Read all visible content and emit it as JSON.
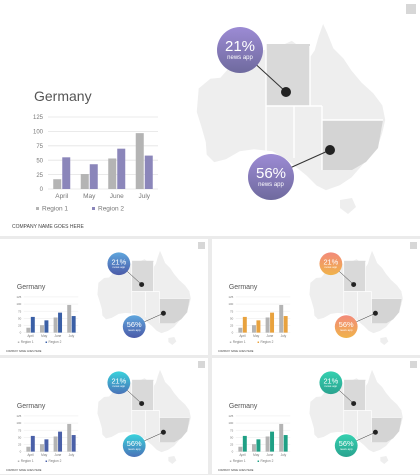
{
  "slides": [
    {
      "title": "Germany",
      "footer": "COMPANY NAME GOES HERE",
      "theme": {
        "bubble_top": "#9c8bd4",
        "bubble_bottom": "#6f6a9e",
        "bar_a": "#a39cc6",
        "bar_b": "#8b86ba"
      },
      "bubbles": [
        {
          "pct": "21%",
          "label": "news app"
        },
        {
          "pct": "56%",
          "label": "news app"
        }
      ]
    },
    {
      "title": "Germany",
      "footer": "COMPANY NAME GOES HERE",
      "theme": {
        "bubble_top": "#5fa6dd",
        "bubble_bottom": "#4b5aa8",
        "bar_a": "#3aa0bf",
        "bar_b": "#3a5fa6"
      },
      "bubbles": [
        {
          "pct": "21%",
          "label": "news app"
        },
        {
          "pct": "56%",
          "label": "news app"
        }
      ]
    },
    {
      "title": "Germany",
      "footer": "COMPANY NAME GOES HERE",
      "theme": {
        "bubble_top": "#f28a7a",
        "bubble_bottom": "#f0b34a",
        "bar_a": "#f0b461",
        "bar_b": "#e8a23e"
      },
      "bubbles": [
        {
          "pct": "21%",
          "label": "news app"
        },
        {
          "pct": "56%",
          "label": "news app"
        }
      ]
    },
    {
      "title": "Germany",
      "footer": "COMPANY NAME GOES HERE",
      "theme": {
        "bubble_top": "#39d2dc",
        "bubble_bottom": "#4a72b8",
        "bar_a": "#4d8fbf",
        "bar_b": "#4a60a8"
      },
      "bubbles": [
        {
          "pct": "21%",
          "label": "news app"
        },
        {
          "pct": "56%",
          "label": "news app"
        }
      ]
    },
    {
      "title": "Germany",
      "footer": "COMPANY NAME GOES HERE",
      "theme": {
        "bubble_top": "#35d0b0",
        "bubble_bottom": "#2aa38f",
        "bar_a": "#2cb89a",
        "bar_b": "#1fa085"
      },
      "bubbles": [
        {
          "pct": "21%",
          "label": "news app"
        },
        {
          "pct": "56%",
          "label": "news app"
        }
      ]
    }
  ],
  "chart_data": {
    "type": "bar",
    "categories": [
      "April",
      "May",
      "June",
      "July"
    ],
    "series": [
      {
        "name": "Region 1",
        "values": [
          17,
          26,
          53,
          97
        ]
      },
      {
        "name": "Region 2",
        "values": [
          55,
          43,
          70,
          58
        ]
      }
    ],
    "series_colors": [
      "#b4b4b4"
    ],
    "ylim": [
      0,
      125
    ],
    "yticks": [
      0,
      25,
      50,
      75,
      100,
      125
    ],
    "grid": true,
    "legend_position": "bottom-left"
  }
}
